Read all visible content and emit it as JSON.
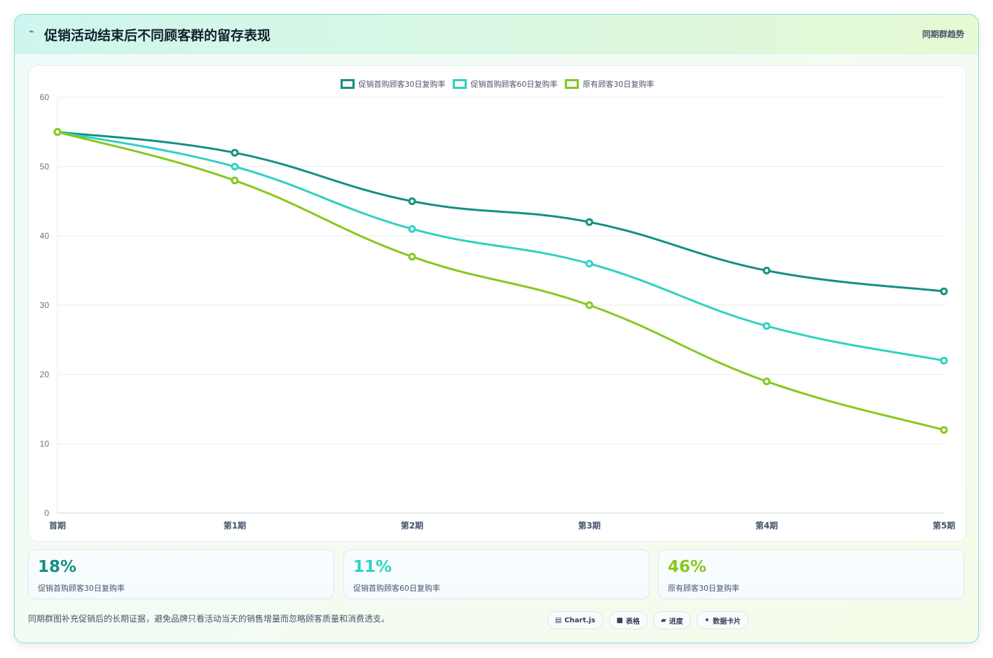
{
  "header": {
    "icon": "lightning-icon",
    "title": "促销活动结束后不同顾客群的留存表现",
    "tag": "同期群趋势"
  },
  "chart_data": {
    "type": "line",
    "categories": [
      "首期",
      "第1期",
      "第2期",
      "第3期",
      "第4期",
      "第5期"
    ],
    "series": [
      {
        "name": "促销首购顾客30日复购率",
        "color": "#148f83",
        "values": [
          55,
          52,
          45,
          42,
          35,
          32
        ]
      },
      {
        "name": "促销首购顾客60日复购率",
        "color": "#2fd1c2",
        "values": [
          55,
          50,
          41,
          36,
          27,
          22
        ]
      },
      {
        "name": "原有顾客30日复购率",
        "color": "#86c81e",
        "values": [
          55,
          48,
          37,
          30,
          19,
          12
        ]
      }
    ],
    "ylim": [
      0,
      60
    ],
    "yticks": [
      0,
      10,
      20,
      30,
      40,
      50,
      60
    ],
    "legend_position": "top-center",
    "grid": true
  },
  "stats": [
    {
      "value": "18%",
      "label": "促销首购顾客30日复购率",
      "color": "#148f83"
    },
    {
      "value": "11%",
      "label": "促销首购顾客60日复购率",
      "color": "#2fd1c2"
    },
    {
      "value": "46%",
      "label": "原有顾客30日复购率",
      "color": "#86c81e"
    }
  ],
  "footnote": "同期群图补充促销后的长期证据，避免品牌只看活动当天的销售增量而忽略顾客质量和消费透支。",
  "chips": [
    {
      "icon": "chart-icon",
      "glyph": "▤",
      "label": "Chart.js"
    },
    {
      "icon": "table-icon",
      "glyph": "■",
      "label": "表格"
    },
    {
      "icon": "progress-icon",
      "glyph": "▰",
      "label": "进度"
    },
    {
      "icon": "sparkle-icon",
      "glyph": "✦",
      "label": "数据卡片"
    }
  ]
}
